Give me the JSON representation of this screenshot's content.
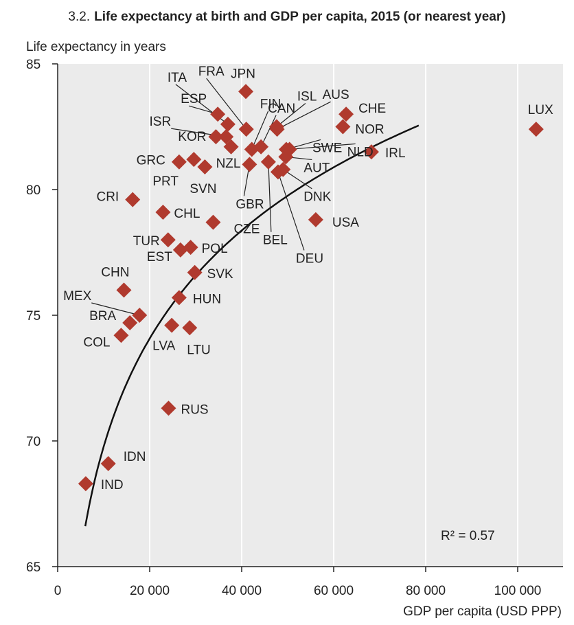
{
  "title_number": "3.2.",
  "title_text": "Life expectancy at birth and GDP per capita, 2015 (or nearest year)",
  "colors": {
    "marker": "#b03a2e",
    "plot_bg": "#ebebeb",
    "grid": "#ffffff",
    "axis": "#222222",
    "curve": "#111111"
  },
  "r2_label": "R² = 0.57",
  "chart_data": {
    "type": "scatter",
    "ylabel": "Life expectancy in years",
    "xlabel": "GDP per capita (USD PPP)",
    "xlim": [
      0,
      105000
    ],
    "ylim": [
      65,
      85
    ],
    "x_ticks": [
      0,
      20000,
      40000,
      60000,
      80000,
      100000
    ],
    "x_tick_labels": [
      "0",
      "20 000",
      "40 000",
      "60 000",
      "80 000",
      "100 000"
    ],
    "y_ticks": [
      65,
      70,
      75,
      80,
      85
    ],
    "y_tick_labels": [
      "65",
      "70",
      "75",
      "80",
      "85"
    ],
    "grid": "vertical",
    "trendline": {
      "type": "logarithmic",
      "r_squared": 0.57
    },
    "points": [
      {
        "label": "IND",
        "x": 6100,
        "y": 68.3
      },
      {
        "label": "IDN",
        "x": 11000,
        "y": 69.1
      },
      {
        "label": "RUS",
        "x": 24100,
        "y": 71.3
      },
      {
        "label": "COL",
        "x": 13800,
        "y": 74.2
      },
      {
        "label": "BRA",
        "x": 15700,
        "y": 74.7
      },
      {
        "label": "MEX",
        "x": 17800,
        "y": 75.0
      },
      {
        "label": "CHN",
        "x": 14400,
        "y": 76.0
      },
      {
        "label": "LVA",
        "x": 24800,
        "y": 74.6
      },
      {
        "label": "LTU",
        "x": 28700,
        "y": 74.5
      },
      {
        "label": "HUN",
        "x": 26400,
        "y": 75.7
      },
      {
        "label": "SVK",
        "x": 29800,
        "y": 76.7
      },
      {
        "label": "EST",
        "x": 26700,
        "y": 77.6
      },
      {
        "label": "POL",
        "x": 28900,
        "y": 77.7
      },
      {
        "label": "TUR",
        "x": 24000,
        "y": 78.0
      },
      {
        "label": "CHL",
        "x": 22900,
        "y": 79.1
      },
      {
        "label": "CRI",
        "x": 16300,
        "y": 79.6
      },
      {
        "label": "CZE",
        "x": 33800,
        "y": 78.7
      },
      {
        "label": "GRC",
        "x": 26400,
        "y": 81.1
      },
      {
        "label": "PRT",
        "x": 29600,
        "y": 81.2
      },
      {
        "label": "SVN",
        "x": 32000,
        "y": 80.9
      },
      {
        "label": "KOR",
        "x": 34400,
        "y": 82.1
      },
      {
        "label": "NZL",
        "x": 37700,
        "y": 81.7
      },
      {
        "label": "ISR",
        "x": 36600,
        "y": 82.1
      },
      {
        "label": "ESP",
        "x": 34800,
        "y": 83.0
      },
      {
        "label": "ITA",
        "x": 37000,
        "y": 82.6
      },
      {
        "label": "FRA",
        "x": 41000,
        "y": 82.4
      },
      {
        "label": "JPN",
        "x": 40900,
        "y": 83.9
      },
      {
        "label": "GBR",
        "x": 41700,
        "y": 81.0
      },
      {
        "label": "FIN",
        "x": 42200,
        "y": 81.6
      },
      {
        "label": "CAN",
        "x": 44200,
        "y": 81.7
      },
      {
        "label": "BEL",
        "x": 45800,
        "y": 81.1
      },
      {
        "label": "ISL",
        "x": 47600,
        "y": 82.5
      },
      {
        "label": "AUS",
        "x": 47700,
        "y": 82.4
      },
      {
        "label": "DEU",
        "x": 47900,
        "y": 80.7
      },
      {
        "label": "DNK",
        "x": 49000,
        "y": 80.8
      },
      {
        "label": "AUT",
        "x": 49600,
        "y": 81.3
      },
      {
        "label": "SWE",
        "x": 49700,
        "y": 81.6
      },
      {
        "label": "NLD",
        "x": 50400,
        "y": 81.6
      },
      {
        "label": "USA",
        "x": 56100,
        "y": 78.8
      },
      {
        "label": "NOR",
        "x": 62000,
        "y": 82.5
      },
      {
        "label": "CHE",
        "x": 62700,
        "y": 83.0
      },
      {
        "label": "IRL",
        "x": 68200,
        "y": 81.5
      },
      {
        "label": "LUX",
        "x": 104000,
        "y": 82.4
      }
    ]
  }
}
